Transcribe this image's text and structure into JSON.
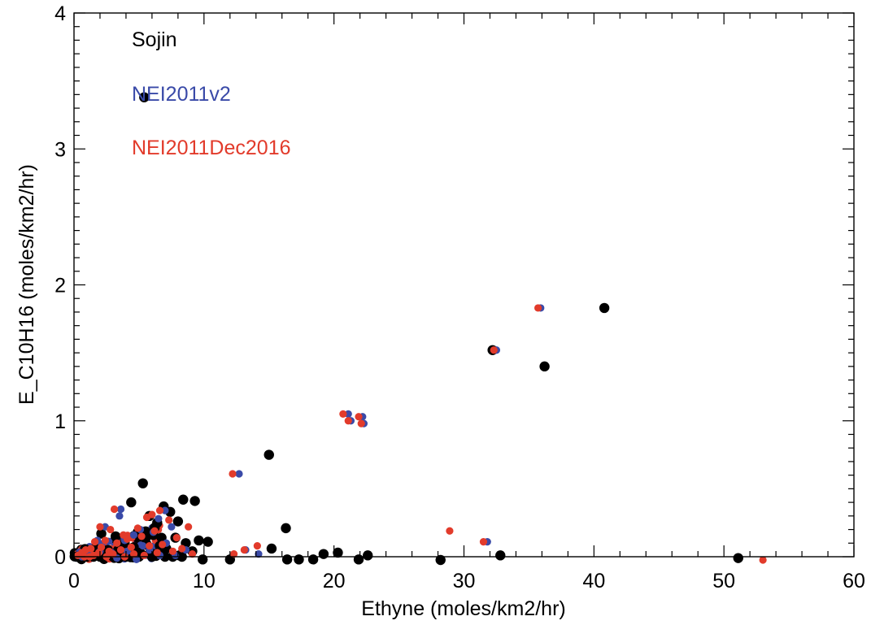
{
  "chart_data": {
    "type": "scatter",
    "title": "",
    "xlabel": "Ethyne (moles/km2/hr)",
    "ylabel": "E_C10H16 (moles/km2/hr)",
    "xlim": [
      0,
      60
    ],
    "ylim": [
      0,
      4
    ],
    "xticks": [
      "0",
      "10",
      "20",
      "30",
      "40",
      "50",
      "60"
    ],
    "yticks": [
      "0",
      "1",
      "2",
      "3",
      "4"
    ],
    "grid": false,
    "legend_placement": "top-left",
    "series": [
      {
        "name": "Sojin",
        "color": "#000000",
        "points": [
          [
            5.4,
            3.38
          ],
          [
            40.8,
            1.83
          ],
          [
            32.2,
            1.52
          ],
          [
            36.2,
            1.4
          ],
          [
            15.0,
            0.75
          ],
          [
            5.3,
            0.54
          ],
          [
            8.4,
            0.42
          ],
          [
            9.3,
            0.41
          ],
          [
            4.4,
            0.4
          ],
          [
            6.9,
            0.37
          ],
          [
            7.4,
            0.33
          ],
          [
            5.8,
            0.3
          ],
          [
            8.0,
            0.26
          ],
          [
            6.4,
            0.25
          ],
          [
            16.3,
            0.21
          ],
          [
            2.1,
            0.17
          ],
          [
            4.9,
            0.18
          ],
          [
            3.2,
            0.15
          ],
          [
            6.1,
            0.16
          ],
          [
            7.8,
            0.14
          ],
          [
            9.6,
            0.12
          ],
          [
            10.3,
            0.11
          ],
          [
            8.6,
            0.1
          ],
          [
            3.9,
            0.1
          ],
          [
            5.6,
            0.09
          ],
          [
            6.6,
            0.08
          ],
          [
            4.6,
            0.07
          ],
          [
            7.1,
            0.06
          ],
          [
            15.2,
            0.06
          ],
          [
            2.6,
            0.05
          ],
          [
            1.7,
            0.04
          ],
          [
            3.4,
            0.05
          ],
          [
            9.1,
            0.04
          ],
          [
            20.3,
            0.03
          ],
          [
            19.2,
            0.02
          ],
          [
            4.2,
            0.02
          ],
          [
            5.1,
            0.03
          ],
          [
            6.3,
            0.02
          ],
          [
            1.2,
            0.02
          ],
          [
            2.8,
            0.02
          ],
          [
            0.8,
            0.01
          ],
          [
            22.6,
            0.01
          ],
          [
            32.8,
            0.01
          ],
          [
            8.1,
            0.01
          ],
          [
            0.4,
            0.0
          ],
          [
            1.0,
            0.0
          ],
          [
            2.0,
            0.0
          ],
          [
            3.0,
            0.0
          ],
          [
            4.0,
            0.0
          ],
          [
            5.0,
            0.0
          ],
          [
            6.0,
            0.0
          ],
          [
            7.0,
            0.0
          ],
          [
            7.6,
            0.0
          ],
          [
            8.3,
            0.0
          ],
          [
            9.9,
            -0.02
          ],
          [
            12.0,
            -0.02
          ],
          [
            16.4,
            -0.02
          ],
          [
            17.3,
            -0.02
          ],
          [
            18.4,
            -0.02
          ],
          [
            21.9,
            -0.02
          ],
          [
            28.2,
            -0.03
          ],
          [
            51.1,
            -0.01
          ],
          [
            1.5,
            0.0
          ],
          [
            2.4,
            0.01
          ],
          [
            3.6,
            0.0
          ],
          [
            4.8,
            0.01
          ],
          [
            0.2,
            0.0
          ]
        ]
      },
      {
        "name": "NEI2011v2",
        "color": "#3a4aa8",
        "points": [
          [
            35.9,
            1.83
          ],
          [
            32.5,
            1.52
          ],
          [
            21.1,
            1.05
          ],
          [
            22.2,
            1.03
          ],
          [
            21.3,
            1.0
          ],
          [
            22.3,
            0.98
          ],
          [
            12.7,
            0.61
          ],
          [
            31.8,
            0.11
          ],
          [
            13.2,
            0.05
          ],
          [
            14.2,
            0.02
          ],
          [
            3.6,
            0.35
          ],
          [
            7.0,
            0.34
          ],
          [
            6.5,
            0.28
          ],
          [
            3.5,
            0.3
          ],
          [
            2.4,
            0.22
          ],
          [
            7.5,
            0.22
          ],
          [
            5.1,
            0.2
          ],
          [
            6.1,
            0.18
          ],
          [
            4.6,
            0.16
          ],
          [
            1.8,
            0.12
          ],
          [
            7.1,
            0.1
          ],
          [
            5.3,
            0.08
          ],
          [
            8.6,
            0.05
          ],
          [
            4.1,
            0.04
          ],
          [
            2.9,
            0.03
          ],
          [
            1.1,
            0.02
          ],
          [
            6.6,
            0.01
          ],
          [
            3.3,
            -0.01
          ],
          [
            0.6,
            0.0
          ],
          [
            2.0,
            0.04
          ],
          [
            3.9,
            0.12
          ],
          [
            5.8,
            0.05
          ],
          [
            7.8,
            0.01
          ],
          [
            4.8,
            -0.02
          ]
        ]
      },
      {
        "name": "NEI2011Dec2016",
        "color": "#e23b2b",
        "points": [
          [
            35.7,
            1.83
          ],
          [
            32.3,
            1.52
          ],
          [
            20.7,
            1.05
          ],
          [
            21.9,
            1.03
          ],
          [
            21.1,
            1.0
          ],
          [
            22.1,
            0.98
          ],
          [
            12.2,
            0.61
          ],
          [
            28.9,
            0.19
          ],
          [
            31.5,
            0.11
          ],
          [
            14.1,
            0.08
          ],
          [
            13.1,
            0.05
          ],
          [
            12.3,
            0.02
          ],
          [
            53.0,
            -0.04
          ],
          [
            3.1,
            0.35
          ],
          [
            6.6,
            0.34
          ],
          [
            6.0,
            0.31
          ],
          [
            5.6,
            0.29
          ],
          [
            7.3,
            0.27
          ],
          [
            2.0,
            0.22
          ],
          [
            8.8,
            0.22
          ],
          [
            4.9,
            0.21
          ],
          [
            2.8,
            0.2
          ],
          [
            6.2,
            0.19
          ],
          [
            3.8,
            0.16
          ],
          [
            5.2,
            0.15
          ],
          [
            7.9,
            0.14
          ],
          [
            4.1,
            0.13
          ],
          [
            2.4,
            0.12
          ],
          [
            1.6,
            0.11
          ],
          [
            3.3,
            0.1
          ],
          [
            6.8,
            0.09
          ],
          [
            5.8,
            0.08
          ],
          [
            4.4,
            0.07
          ],
          [
            2.1,
            0.07
          ],
          [
            1.3,
            0.06
          ],
          [
            3.6,
            0.05
          ],
          [
            0.9,
            0.05
          ],
          [
            7.6,
            0.04
          ],
          [
            2.7,
            0.04
          ],
          [
            1.9,
            0.03
          ],
          [
            0.6,
            0.03
          ],
          [
            4.6,
            0.02
          ],
          [
            3.0,
            0.02
          ],
          [
            1.5,
            0.01
          ],
          [
            0.3,
            0.01
          ],
          [
            5.4,
            0.01
          ],
          [
            2.5,
            0.0
          ],
          [
            0.8,
            0.0
          ],
          [
            1.2,
            0.0
          ],
          [
            3.9,
            0.0
          ],
          [
            8.3,
            0.06
          ],
          [
            9.1,
            0.02
          ],
          [
            6.4,
            0.03
          ]
        ]
      }
    ]
  },
  "colors": {
    "sojin": "#000000",
    "nei2011v2": "#3a4aa8",
    "nei2011dec2016": "#e23b2b",
    "axis": "#000000",
    "background": "#ffffff"
  }
}
